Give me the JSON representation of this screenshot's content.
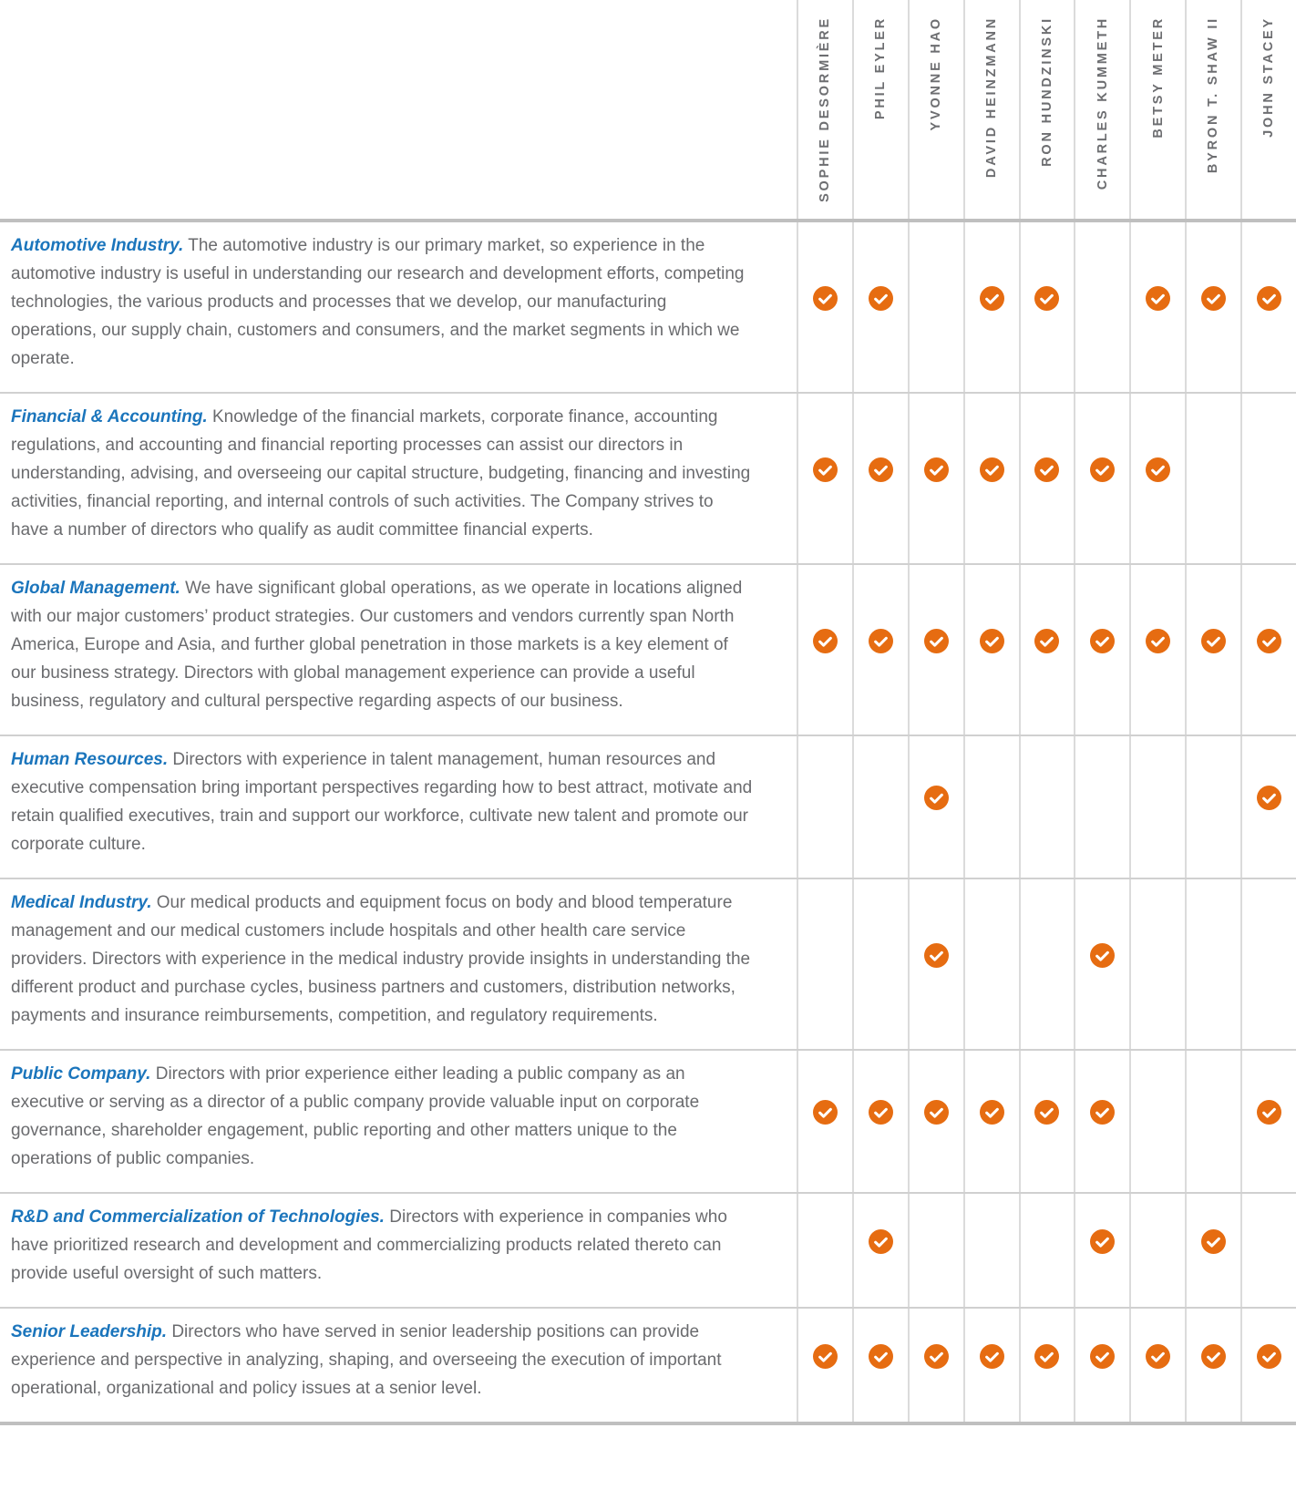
{
  "table": {
    "directors": [
      "SOPHIE DESORMIÈRE",
      "PHIL EYLER",
      "YVONNE HAO",
      "DAVID HEINZMANN",
      "RON HUNDZINSKI",
      "CHARLES KUMMETH",
      "BETSY METER",
      "BYRON T. SHAW II",
      "JOHN STACEY"
    ],
    "rows": [
      {
        "title": "Automotive Industry.",
        "description": "The automotive industry is our primary market, so experience in the automotive industry is useful in understanding our research and development efforts, competing technologies, the various products and processes that we develop, our manufacturing operations, our supply chain, customers and consumers, and the market segments in which we operate.",
        "checks": [
          1,
          1,
          0,
          1,
          1,
          0,
          1,
          1,
          1
        ]
      },
      {
        "title": "Financial & Accounting.",
        "description": "Knowledge of the financial markets, corporate finance, accounting regulations, and accounting and financial reporting processes can assist our directors in understanding, advising, and overseeing our capital structure, budgeting, financing and investing activities, financial reporting, and internal controls of such activities. The Company strives to have a number of directors who qualify as audit committee financial experts.",
        "checks": [
          1,
          1,
          1,
          1,
          1,
          1,
          1,
          0,
          0
        ]
      },
      {
        "title": "Global Management.",
        "description": "We have significant global operations, as we operate in locations aligned with our major customers’ product strategies. Our customers and vendors currently span North America, Europe and Asia, and further global penetration in those markets is a key element of our business strategy.  Directors with global management experience can provide a useful business, regulatory and cultural perspective regarding aspects of our business.",
        "checks": [
          1,
          1,
          1,
          1,
          1,
          1,
          1,
          1,
          1
        ]
      },
      {
        "title": "Human Resources.",
        "description": "Directors with experience in talent management, human resources and executive compensation bring important perspectives regarding how to best attract, motivate and retain qualified executives, train and support our workforce, cultivate new talent and promote our corporate culture.",
        "checks": [
          0,
          0,
          1,
          0,
          0,
          0,
          0,
          0,
          1
        ]
      },
      {
        "title": "Medical Industry.",
        "description": "Our medical products and equipment focus on body and blood temperature management and our medical customers include hospitals and other health care service providers.  Directors with experience in the medical industry provide insights in understanding the different product and purchase cycles, business partners and customers, distribution networks, payments and insurance reimbursements, competition, and regulatory requirements.",
        "checks": [
          0,
          0,
          1,
          0,
          0,
          1,
          0,
          0,
          0
        ]
      },
      {
        "title": "Public Company.",
        "description": "Directors with prior experience either leading a public company as an executive or serving as a director of a public company provide valuable input on corporate governance, shareholder engagement, public reporting and other matters unique to the operations of public companies.",
        "checks": [
          1,
          1,
          1,
          1,
          1,
          1,
          0,
          0,
          1
        ]
      },
      {
        "title": "R&D and Commercialization of Technologies.",
        "description": "Directors with experience in companies who have prioritized research and development and commercializing products related thereto can provide useful oversight of such matters.",
        "checks": [
          0,
          1,
          0,
          0,
          0,
          1,
          0,
          1,
          0
        ]
      },
      {
        "title": "Senior Leadership.",
        "description": "Directors who have served in senior leadership positions can provide experience and perspective in analyzing, shaping, and overseeing the execution of important operational, organizational and policy issues at a senior level.",
        "checks": [
          1,
          1,
          1,
          1,
          1,
          1,
          1,
          1,
          1
        ]
      }
    ],
    "check_icon": "orange-circle-white-checkmark",
    "colors": {
      "heading_blue": "#1B75BC",
      "body_text_gray": "#6A6B6E",
      "director_name_gray": "#6D6E71",
      "check_orange": "#E66C11",
      "column_divider": "#DBDBDB",
      "row_divider": "#D0D0D0",
      "table_frame_border": "#BFBFBF"
    }
  }
}
